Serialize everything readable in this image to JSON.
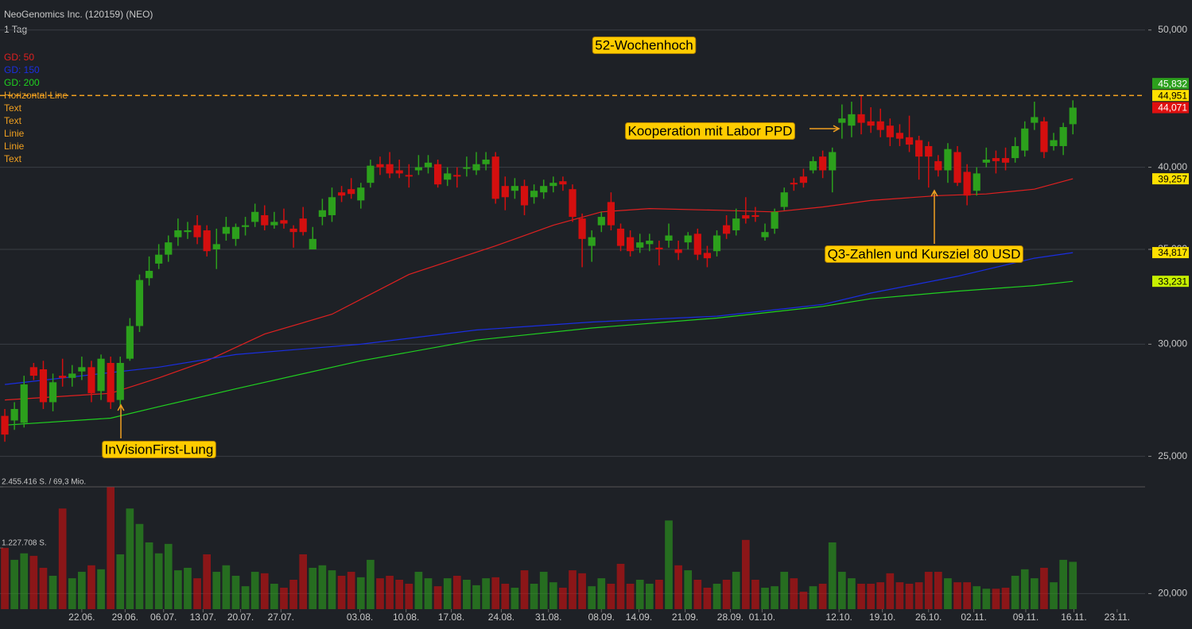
{
  "chart_data": {
    "type": "candlestick",
    "title": "NeoGenomics Inc. (120159) (NEO)",
    "subtitle": "1 Tag",
    "up_color": "#2ca01c",
    "down_color": "#d40f0f",
    "xlim": [
      -0.5,
      118.5
    ],
    "xticks": [
      {
        "value": 8,
        "label": "22.06."
      },
      {
        "value": 12.5,
        "label": "29.06."
      },
      {
        "value": 16.5,
        "label": "06.07."
      },
      {
        "value": 20.6,
        "label": "13.07."
      },
      {
        "value": 24.5,
        "label": "20.07."
      },
      {
        "value": 28.7,
        "label": "27.07."
      },
      {
        "value": 36.9,
        "label": "03.08."
      },
      {
        "value": 41.7,
        "label": "10.08."
      },
      {
        "value": 46.4,
        "label": "17.08."
      },
      {
        "value": 51.6,
        "label": "24.08."
      },
      {
        "value": 56.5,
        "label": "31.08."
      },
      {
        "value": 62,
        "label": "08.09."
      },
      {
        "value": 65.9,
        "label": "14.09."
      },
      {
        "value": 70.7,
        "label": "21.09."
      },
      {
        "value": 75.4,
        "label": "28.09."
      },
      {
        "value": 78.7,
        "label": "01.10."
      },
      {
        "value": 86.7,
        "label": "12.10."
      },
      {
        "value": 91.2,
        "label": "19.10."
      },
      {
        "value": 96,
        "label": "26.10."
      },
      {
        "value": 100.7,
        "label": "02.11."
      },
      {
        "value": 106.1,
        "label": "09.11."
      },
      {
        "value": 111.1,
        "label": "16.11."
      },
      {
        "value": 115.6,
        "label": "23.11."
      }
    ],
    "log_scale": true,
    "ylim": [
      19.5,
      52.5
    ],
    "yticks": [
      {
        "value": 50,
        "label": "50,000"
      },
      {
        "value": 40,
        "label": "40,000"
      },
      {
        "value": 35,
        "label": "35,000"
      },
      {
        "value": 30,
        "label": "30,000"
      },
      {
        "value": 25,
        "label": "25,000"
      },
      {
        "value": 20,
        "label": "20,000"
      }
    ],
    "grid": true,
    "open": [
      26.7,
      26.5,
      26.4,
      28.9,
      28.8,
      27.3,
      28.5,
      28.4,
      28.7,
      28.9,
      27.8,
      29.1,
      27.4,
      29.3,
      30.9,
      33.4,
      34.2,
      34.7,
      35.7,
      36.0,
      36.4,
      36.1,
      35.0,
      35.9,
      35.6,
      36.3,
      36.6,
      37.0,
      36.4,
      36.7,
      36.2,
      36.8,
      35.0,
      36.9,
      37.0,
      38.4,
      38.6,
      37.9,
      39.0,
      40.2,
      40.2,
      39.8,
      39.5,
      39.8,
      40.0,
      40.2,
      39.2,
      39.5,
      39.9,
      39.8,
      40.2,
      40.7,
      38.8,
      38.5,
      38.8,
      38.1,
      38.4,
      38.8,
      39.1,
      38.6,
      36.8,
      35.2,
      36.4,
      37.8,
      36.2,
      35.7,
      35.1,
      35.3,
      35.1,
      35.5,
      35.0,
      35.4,
      35.9,
      34.8,
      34.9,
      36.4,
      36.1,
      37.0,
      37.0,
      35.7,
      36.2,
      37.5,
      39.0,
      39.4,
      39.8,
      40.7,
      39.8,
      43.0,
      42.8,
      43.6,
      43.1,
      43.1,
      42.8,
      42.3,
      42.0,
      41.8,
      41.4,
      40.4,
      39.8,
      41.0,
      39.7,
      38.5,
      40.3,
      40.6,
      40.6,
      40.6,
      41.1,
      43.0,
      43.1,
      41.4,
      41.4,
      42.9
    ],
    "high": [
      27.0,
      27.3,
      28.5,
      29.1,
      29.2,
      28.6,
      29.3,
      29.0,
      29.4,
      29.2,
      29.5,
      29.4,
      29.4,
      31.3,
      33.6,
      34.6,
      35.3,
      35.8,
      36.8,
      36.6,
      37.0,
      36.4,
      36.2,
      36.9,
      36.5,
      36.9,
      37.7,
      37.6,
      37.2,
      37.4,
      36.4,
      37.5,
      36.3,
      38.0,
      38.7,
      38.8,
      39.3,
      39.0,
      40.5,
      40.7,
      41.0,
      40.5,
      40.2,
      40.8,
      40.8,
      40.5,
      40.0,
      40.0,
      40.7,
      41.0,
      41.0,
      41.0,
      39.4,
      39.3,
      39.2,
      38.9,
      39.2,
      39.4,
      39.4,
      38.9,
      37.1,
      36.1,
      37.2,
      38.4,
      36.5,
      36.1,
      35.9,
      35.9,
      35.5,
      36.5,
      35.5,
      36.0,
      36.2,
      35.2,
      36.1,
      37.0,
      37.4,
      38.1,
      37.5,
      36.5,
      37.4,
      38.7,
      39.3,
      39.9,
      40.7,
      41.1,
      41.3,
      44.3,
      44.5,
      45.0,
      44.1,
      44.0,
      43.3,
      42.9,
      43.5,
      42.1,
      41.7,
      40.8,
      41.6,
      41.4,
      40.2,
      40.0,
      41.3,
      41.1,
      41.3,
      42.0,
      43.1,
      44.5,
      43.4,
      42.3,
      43.0,
      44.6
    ],
    "low": [
      25.6,
      26.1,
      26.2,
      28.3,
      27.0,
      26.9,
      28.0,
      28.0,
      28.3,
      27.3,
      27.4,
      27.0,
      27.1,
      29.2,
      30.6,
      33.0,
      33.9,
      34.3,
      35.2,
      35.6,
      35.3,
      34.6,
      33.9,
      35.5,
      35.2,
      35.8,
      36.3,
      36.1,
      36.2,
      36.2,
      35.1,
      35.8,
      35.0,
      36.4,
      36.6,
      37.8,
      38.0,
      37.4,
      38.7,
      39.5,
      39.3,
      39.3,
      38.7,
      39.5,
      39.6,
      38.7,
      38.8,
      38.7,
      39.4,
      39.5,
      39.8,
      37.7,
      37.3,
      38.0,
      37.0,
      37.7,
      38.0,
      38.4,
      38.5,
      36.6,
      34.0,
      34.3,
      36.0,
      36.1,
      34.9,
      34.6,
      34.8,
      34.9,
      34.1,
      35.1,
      34.4,
      35.0,
      34.4,
      34.0,
      34.6,
      35.6,
      35.8,
      36.5,
      36.6,
      35.5,
      35.9,
      37.3,
      38.5,
      38.7,
      39.6,
      39.3,
      38.4,
      41.9,
      42.0,
      42.2,
      42.3,
      42.0,
      41.4,
      41.4,
      41.0,
      39.2,
      38.7,
      39.4,
      39.0,
      38.8,
      37.6,
      38.2,
      40.0,
      39.6,
      39.8,
      40.3,
      40.7,
      42.5,
      40.6,
      41.1,
      40.8,
      42.2
    ],
    "close": [
      25.9,
      27.0,
      28.1,
      28.5,
      27.3,
      28.2,
      28.4,
      28.6,
      28.9,
      27.7,
      29.3,
      27.3,
      29.1,
      30.9,
      33.3,
      33.8,
      34.7,
      35.4,
      36.1,
      36.1,
      35.7,
      34.9,
      35.3,
      36.3,
      36.3,
      36.4,
      37.2,
      36.4,
      36.6,
      36.5,
      36.0,
      36.0,
      35.6,
      37.3,
      38.1,
      38.2,
      38.3,
      38.7,
      40.1,
      40.0,
      39.6,
      39.6,
      39.4,
      40.0,
      40.3,
      38.9,
      39.6,
      39.4,
      40.0,
      40.2,
      40.5,
      38.0,
      38.1,
      38.8,
      37.6,
      38.5,
      38.8,
      39.0,
      38.9,
      36.9,
      35.6,
      35.7,
      36.9,
      36.4,
      35.2,
      34.9,
      35.4,
      35.5,
      35.0,
      35.8,
      34.8,
      35.8,
      34.7,
      34.5,
      35.8,
      35.9,
      36.8,
      36.8,
      36.9,
      36.0,
      37.2,
      38.4,
      38.9,
      39.0,
      40.4,
      39.8,
      41.0,
      43.3,
      43.6,
      43.0,
      42.8,
      42.5,
      42.0,
      41.9,
      41.5,
      40.7,
      40.7,
      39.8,
      41.2,
      39.0,
      38.2,
      39.6,
      40.5,
      40.4,
      40.3,
      41.4,
      42.6,
      43.4,
      41.0,
      41.8,
      42.7,
      44.071
    ],
    "moving_averages": [
      {
        "name": "GD: 50",
        "color": "#e02020",
        "x": [
          0,
          11,
          16,
          21,
          27,
          34,
          42,
          51,
          57,
          62,
          67,
          74,
          80,
          85,
          90,
          97,
          102,
          107,
          111
        ],
        "values": [
          27.4,
          27.7,
          28.4,
          29.2,
          30.5,
          31.5,
          33.6,
          35.2,
          36.4,
          37.2,
          37.4,
          37.3,
          37.2,
          37.5,
          37.9,
          38.2,
          38.3,
          38.6,
          39.257
        ]
      },
      {
        "name": "GD: 150",
        "color": "#1a2ee0",
        "x": [
          0,
          16,
          24,
          37,
          49,
          61,
          74,
          85,
          90,
          99,
          107,
          111
        ],
        "values": [
          28.1,
          28.9,
          29.5,
          30.0,
          30.7,
          31.1,
          31.4,
          32.0,
          32.6,
          33.5,
          34.5,
          34.817
        ]
      },
      {
        "name": "GD: 200",
        "color": "#20d020",
        "x": [
          0,
          11,
          16,
          24,
          37,
          49,
          61,
          74,
          85,
          90,
          99,
          107,
          111
        ],
        "values": [
          26.3,
          26.6,
          27.1,
          27.9,
          29.2,
          30.2,
          30.8,
          31.3,
          31.9,
          32.3,
          32.7,
          33.0,
          33.231
        ]
      }
    ],
    "tools": [
      "Horizontal Line",
      "Text",
      "Text",
      "Linie",
      "Linie",
      "Text"
    ],
    "tools_color": "#f0a020",
    "horizontal_line": {
      "value": 44.951,
      "color": "#f0a020"
    },
    "price_tags": [
      {
        "value": 45.832,
        "label": "45,832",
        "color": "#2ca01c"
      },
      {
        "value": 44.951,
        "label": "44,951",
        "color": "#ffe000"
      },
      {
        "value": 44.071,
        "label": "44,071",
        "color": "#e01010"
      },
      {
        "value": 39.257,
        "label": "39,257",
        "color": "#ffe000"
      },
      {
        "value": 34.817,
        "label": "34,817",
        "color": "#ffe000"
      },
      {
        "value": 33.231,
        "label": "33,231",
        "color": "#c8f000"
      }
    ],
    "annotations": [
      "52-Wochenhoch",
      "Kooperation mit Labor PPD",
      "Q3-Zahlen und Kursziel 80 USD",
      "InVisionFirst-Lung"
    ],
    "volume": {
      "ylim": [
        0,
        2455416
      ],
      "yticks": [
        {
          "value": 2455416,
          "label": "2.455.416 S. / 69,3 Mio."
        },
        {
          "value": 1227708,
          "label": "1.227.708 S."
        }
      ],
      "values": [
        1230000,
        990000,
        1120000,
        1070000,
        830000,
        670000,
        2020000,
        620000,
        750000,
        880000,
        800000,
        2450000,
        1100000,
        2020000,
        1710000,
        1340000,
        1120000,
        1310000,
        780000,
        830000,
        620000,
        1100000,
        750000,
        880000,
        670000,
        460000,
        750000,
        720000,
        510000,
        430000,
        590000,
        1100000,
        830000,
        880000,
        780000,
        670000,
        750000,
        640000,
        990000,
        620000,
        670000,
        590000,
        510000,
        750000,
        620000,
        460000,
        620000,
        670000,
        590000,
        480000,
        620000,
        640000,
        510000,
        430000,
        780000,
        510000,
        750000,
        540000,
        430000,
        780000,
        720000,
        460000,
        620000,
        510000,
        910000,
        510000,
        590000,
        510000,
        590000,
        1780000,
        880000,
        780000,
        590000,
        430000,
        510000,
        590000,
        750000,
        1390000,
        590000,
        430000,
        460000,
        750000,
        620000,
        350000,
        460000,
        510000,
        1340000,
        750000,
        620000,
        510000,
        510000,
        540000,
        720000,
        540000,
        510000,
        540000,
        750000,
        750000,
        620000,
        540000,
        540000,
        460000,
        410000,
        410000,
        430000,
        670000,
        800000,
        620000,
        830000,
        540000,
        990000,
        950000
      ]
    }
  }
}
